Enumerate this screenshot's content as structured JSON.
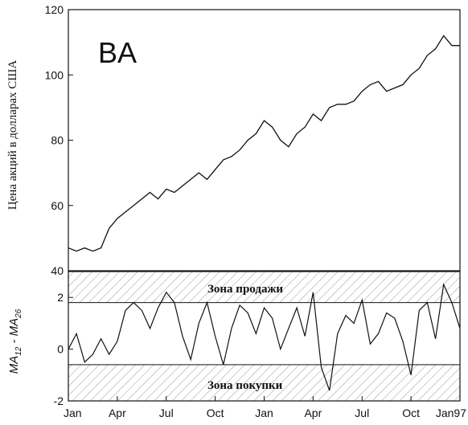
{
  "chart_data": [
    {
      "type": "line",
      "title": "BA",
      "ylabel": "Цена акций в долларах США",
      "ylim": [
        40,
        120
      ],
      "yticks": [
        40,
        60,
        80,
        100,
        120
      ],
      "xlim": [
        0,
        24
      ],
      "grid": false,
      "series": [
        {
          "x": [
            0,
            0.5,
            1,
            1.5,
            2,
            2.5,
            3,
            3.5,
            4,
            4.5,
            5,
            5.5,
            6,
            6.5,
            7,
            7.5,
            8,
            8.5,
            9,
            9.5,
            10,
            10.5,
            11,
            11.5,
            12,
            12.5,
            13,
            13.5,
            14,
            14.5,
            15,
            15.5,
            16,
            16.5,
            17,
            17.5,
            18,
            18.5,
            19,
            19.5,
            20,
            20.5,
            21,
            21.5,
            22,
            22.5,
            23,
            23.5,
            24
          ],
          "values": [
            47,
            46,
            47,
            46,
            47,
            53,
            56,
            58,
            60,
            62,
            64,
            62,
            65,
            64,
            66,
            68,
            70,
            68,
            71,
            74,
            75,
            77,
            80,
            82,
            86,
            84,
            80,
            78,
            82,
            84,
            88,
            86,
            90,
            91,
            91,
            92,
            95,
            97,
            98,
            95,
            96,
            97,
            100,
            102,
            106,
            108,
            112,
            109,
            109
          ]
        }
      ]
    },
    {
      "type": "line",
      "ylabel_main": "MA",
      "ylabel_sub1": "12",
      "ylabel_mid": " - MA",
      "ylabel_sub2": "26",
      "ylim": [
        -2,
        3
      ],
      "yticks": [
        -2,
        0,
        2
      ],
      "xlim": [
        0,
        24
      ],
      "x_tick_labels": [
        "Jan",
        "Apr",
        "Jul",
        "Oct",
        "Jan",
        "Apr",
        "Jul",
        "Oct",
        "Jan97"
      ],
      "x_tick_positions": [
        0,
        3,
        6,
        9,
        12,
        15,
        18,
        21,
        24
      ],
      "sell_zone": {
        "label": "Зона продажи",
        "from": 1.8,
        "to": 3
      },
      "buy_zone": {
        "label": "Зона покупки",
        "from": -2,
        "to": -0.6
      },
      "series": [
        {
          "x": [
            0,
            0.5,
            1,
            1.5,
            2,
            2.5,
            3,
            3.5,
            4,
            4.5,
            5,
            5.5,
            6,
            6.5,
            7,
            7.5,
            8,
            8.5,
            9,
            9.5,
            10,
            10.5,
            11,
            11.5,
            12,
            12.5,
            13,
            13.5,
            14,
            14.5,
            15,
            15.5,
            16,
            16.5,
            17,
            17.5,
            18,
            18.5,
            19,
            19.5,
            20,
            20.5,
            21,
            21.5,
            22,
            22.5,
            23,
            23.5,
            24
          ],
          "values": [
            0,
            0.6,
            -0.5,
            -0.2,
            0.4,
            -0.2,
            0.3,
            1.5,
            1.8,
            1.5,
            0.8,
            1.6,
            2.2,
            1.8,
            0.5,
            -0.4,
            1,
            1.8,
            0.5,
            -0.6,
            0.8,
            1.7,
            1.4,
            0.6,
            1.6,
            1.2,
            0,
            0.8,
            1.6,
            0.5,
            2.2,
            -0.7,
            -1.6,
            0.6,
            1.3,
            1,
            1.9,
            0.2,
            0.6,
            1.4,
            1.2,
            0.3,
            -1,
            1.5,
            1.8,
            0.4,
            2.5,
            1.8,
            0.8
          ]
        }
      ]
    }
  ]
}
